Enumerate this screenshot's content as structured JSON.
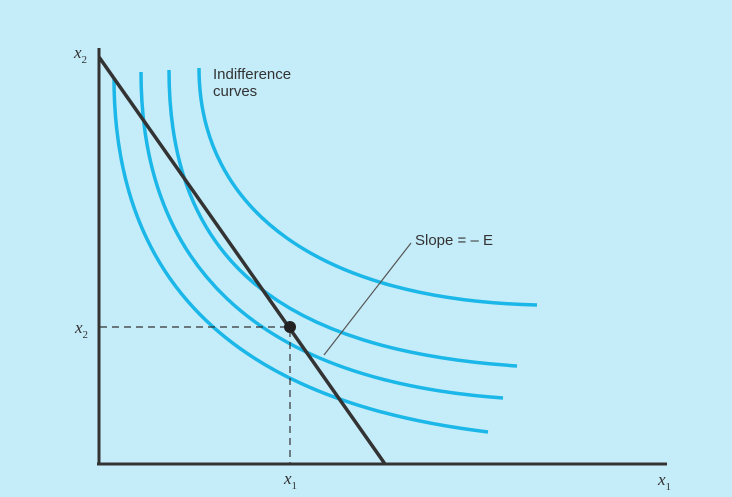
{
  "axes": {
    "y_label": "x",
    "y_label_sub": "2",
    "x_label": "x",
    "x_label_sub": "1",
    "y_tick": "x",
    "y_tick_sub": "2",
    "x_tick": "x",
    "x_tick_sub": "1"
  },
  "annotations": {
    "curves_line1": "Indifference",
    "curves_line2": "curves",
    "slope_label": "Slope = – E"
  },
  "colors": {
    "background": "#c5ecf9",
    "curve": "#1ab7e8",
    "budget_line": "#333333",
    "axis": "#333333"
  }
}
